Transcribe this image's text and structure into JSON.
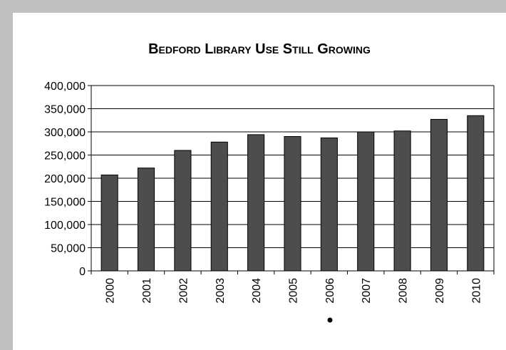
{
  "chart_data": {
    "type": "bar",
    "title": "Bedford Library Use Still Growing",
    "xlabel": "",
    "ylabel": "",
    "categories": [
      "2000",
      "2001",
      "2002",
      "2003",
      "2004",
      "2005",
      "2006",
      "2007",
      "2008",
      "2009",
      "2010"
    ],
    "values": [
      207000,
      222000,
      260000,
      278000,
      294000,
      290000,
      287000,
      300000,
      302000,
      327000,
      335000
    ],
    "ylim": [
      0,
      400000
    ],
    "yticks": [
      "0",
      "50,000",
      "100,000",
      "150,000",
      "200,000",
      "250,000",
      "300,000",
      "350,000",
      "400,000"
    ],
    "bar_color": "#4d4d4d",
    "grid": true
  }
}
